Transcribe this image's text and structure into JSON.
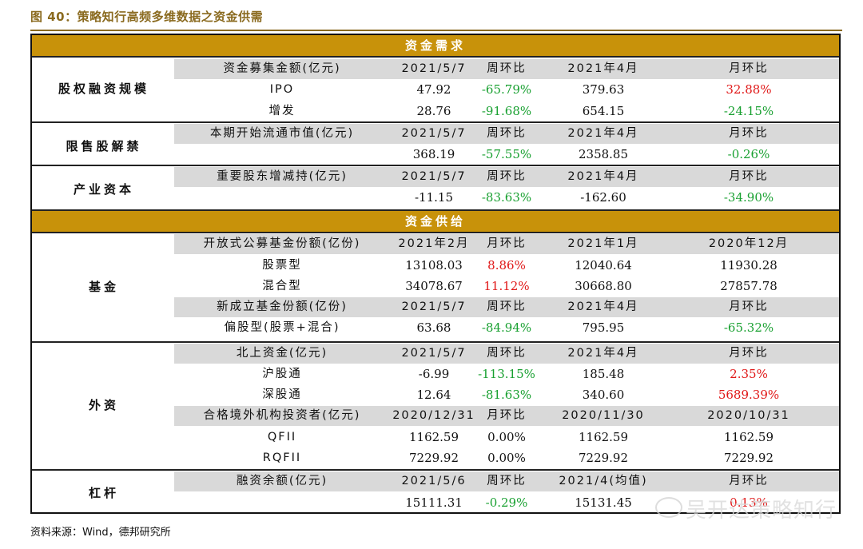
{
  "figure_title": "图 40：策略知行高频多维数据之资金供需",
  "section_demand": "资金需求",
  "section_supply": "资金供给",
  "groups": {
    "equity_financing": "股权融资规模",
    "lockup": "限售股解禁",
    "industrial_capital": "产业资本",
    "fund": "基金",
    "foreign": "外资",
    "leverage": "杠杆"
  },
  "rows": {
    "ef_h": [
      "资金募集金额(亿元)",
      "2021/5/7",
      "周环比",
      "2021年4月",
      "月环比"
    ],
    "ef_1": [
      "IPO",
      "47.92",
      "-65.79%",
      "379.63",
      "32.88%"
    ],
    "ef_2": [
      "增发",
      "28.76",
      "-91.68%",
      "654.15",
      "-24.15%"
    ],
    "lu_h": [
      "本期开始流通市值(亿元)",
      "2021/5/7",
      "周环比",
      "2021年4月",
      "月环比"
    ],
    "lu_1": [
      "",
      "368.19",
      "-57.55%",
      "2358.85",
      "-0.26%"
    ],
    "ic_h": [
      "重要股东增减持(亿元)",
      "2021/5/7",
      "周环比",
      "2021年4月",
      "月环比"
    ],
    "ic_1": [
      "",
      "-11.15",
      "-83.63%",
      "-162.60",
      "-34.90%"
    ],
    "fd_h": [
      "开放式公募基金份额(亿份)",
      "2021年2月",
      "月环比",
      "2021年1月",
      "2020年12月"
    ],
    "fd_1": [
      "股票型",
      "13108.03",
      "8.86%",
      "12040.64",
      "11930.28"
    ],
    "fd_2": [
      "混合型",
      "34078.67",
      "11.12%",
      "30668.80",
      "27857.78"
    ],
    "fd_h2": [
      "新成立基金份额(亿份)",
      "2021/5/7",
      "周环比",
      "2021年4月",
      "月环比"
    ],
    "fd_3": [
      "偏股型(股票+混合)",
      "63.68",
      "-84.94%",
      "795.95",
      "-65.32%"
    ],
    "fr_h": [
      "北上资金(亿元)",
      "2021/5/7",
      "周环比",
      "2021年4月",
      "月环比"
    ],
    "fr_1": [
      "沪股通",
      "-6.99",
      "-113.15%",
      "185.48",
      "2.35%"
    ],
    "fr_2": [
      "深股通",
      "12.64",
      "-81.63%",
      "340.60",
      "5689.39%"
    ],
    "fr_h2": [
      "合格境外机构投资者(亿元)",
      "2020/12/31",
      "月环比",
      "2020/11/30",
      "2020/10/31"
    ],
    "fr_3": [
      "QFII",
      "1162.59",
      "0.00%",
      "1162.59",
      "1162.59"
    ],
    "fr_4": [
      "RQFII",
      "7229.92",
      "0.00%",
      "7229.92",
      "7229.92"
    ],
    "lv_h": [
      "融资余额(亿元)",
      "2021/5/6",
      "周环比",
      "2021/4(均值)",
      "月环比"
    ],
    "lv_1": [
      "",
      "15111.31",
      "-0.29%",
      "15131.45",
      "0.13%"
    ]
  },
  "colors": {
    "positive": "#e01818",
    "negative": "#18a030",
    "band": "#c8920a",
    "header_gray": "#d9d9d9"
  },
  "source": "资料来源：Wind，德邦研究所",
  "watermark": "吴开达策略知行"
}
